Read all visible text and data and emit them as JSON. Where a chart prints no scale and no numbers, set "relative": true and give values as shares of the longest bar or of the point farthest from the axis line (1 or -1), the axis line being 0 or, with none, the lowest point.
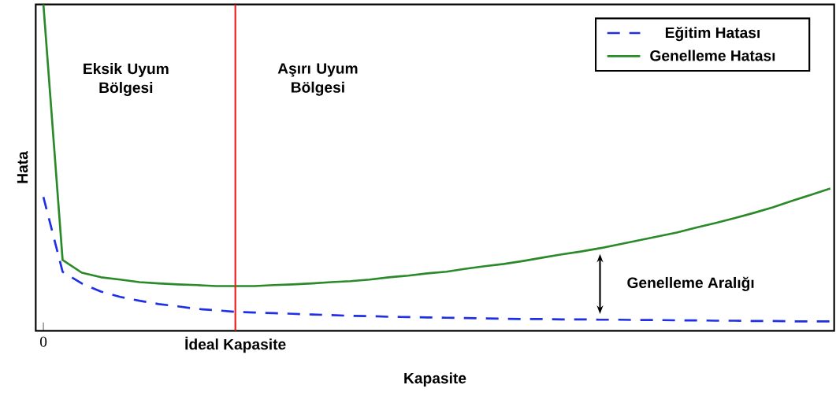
{
  "chart_data": {
    "type": "line",
    "relative": true,
    "xlabel": "Kapasite",
    "ylabel": "Hata",
    "legend": "top right",
    "line_style": "solid",
    "marker": "none",
    "grid": false,
    "categories": [
      "0",
      null,
      null,
      null,
      null,
      null,
      null,
      null,
      null,
      null,
      "İdeal Kapasite",
      null,
      null,
      null,
      null,
      null,
      null,
      null,
      null,
      null,
      null,
      null,
      null,
      null,
      null,
      null,
      null,
      null,
      null,
      null,
      null,
      null,
      null,
      null,
      null,
      null,
      null,
      null,
      null,
      null,
      null,
      null
    ],
    "series": [
      {
        "name": "Eğitim Hatası",
        "color": "#1f2fe8",
        "line_style": "dashed",
        "values": [
          0.41,
          0.181,
          0.145,
          0.12,
          0.104,
          0.092,
          0.082,
          0.075,
          0.067,
          0.063,
          0.058,
          0.056,
          0.054,
          0.052,
          0.05,
          0.048,
          0.046,
          0.045,
          0.043,
          0.042,
          0.041,
          0.04,
          0.039,
          0.038,
          0.037,
          0.036,
          0.036,
          0.035,
          0.035,
          0.034,
          0.034,
          0.033,
          0.033,
          0.032,
          0.032,
          0.031,
          0.031,
          0.03,
          0.03,
          0.029,
          0.029,
          0.029
        ]
      },
      {
        "name": "Genelleme Hatası",
        "color": "#2a8a2a",
        "values": [
          1.0,
          0.217,
          0.178,
          0.164,
          0.157,
          0.149,
          0.145,
          0.142,
          0.14,
          0.137,
          0.137,
          0.137,
          0.14,
          0.142,
          0.145,
          0.149,
          0.152,
          0.157,
          0.164,
          0.169,
          0.176,
          0.181,
          0.19,
          0.198,
          0.205,
          0.214,
          0.224,
          0.234,
          0.243,
          0.253,
          0.265,
          0.277,
          0.289,
          0.301,
          0.316,
          0.33,
          0.345,
          0.361,
          0.378,
          0.398,
          0.417,
          0.436
        ]
      }
    ],
    "ref_lines": [
      {
        "axis": "x",
        "value": "İdeal Kapasite",
        "color": "#ee1c1c"
      }
    ],
    "annotations": [
      "Eksik Uyum Bölgesi",
      "Aşırı Uyum Bölgesi",
      "Genelleme Aralığı"
    ]
  }
}
